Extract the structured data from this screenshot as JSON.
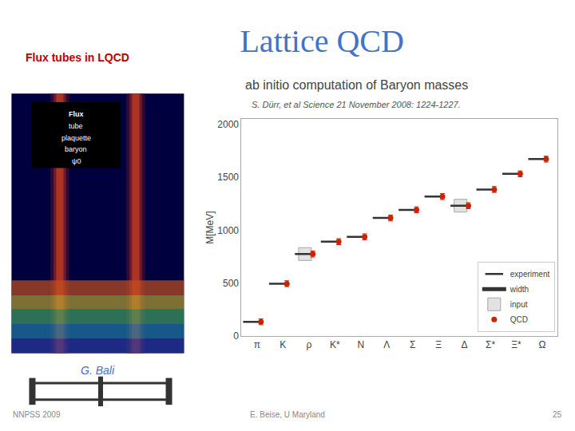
{
  "chart_data": {
    "type": "scatter",
    "title": "Lattice QCD",
    "title_color": "#4472c4",
    "subtitle": "ab initio computation of Baryon masses",
    "annotations": [
      {
        "text": "Flux tubes in LQCD",
        "color": "#c00000"
      },
      {
        "text": "S. Dürr, et al Science 21 November 2008: 1224-1227.",
        "color": "#555555"
      },
      {
        "text": "G. Bali",
        "color": "#4472c4"
      }
    ],
    "image_labels": [
      "Flux",
      "tube",
      "plaquette",
      "baryon",
      "ψ0"
    ],
    "footer": [
      {
        "text": "NNPSS 2009",
        "color": "#888888"
      },
      {
        "text": "E. Beise, U Maryland",
        "color": "#888888"
      },
      {
        "text": "25",
        "color": "#888888"
      }
    ],
    "y_label": "M[MeV]",
    "categories": [
      "π",
      "K",
      "ρ",
      "K*",
      "N",
      "Λ",
      "Σ",
      "Ξ",
      "Δ",
      "Σ*",
      "Ξ*",
      "Ω"
    ],
    "series": [
      {
        "name": "experiment",
        "color": "#333333",
        "marker": "line",
        "values": [
          135,
          495,
          775,
          892,
          938,
          1116,
          1193,
          1318,
          1232,
          1385,
          1533,
          1672
        ]
      },
      {
        "name": "width",
        "color": "#333333",
        "line_style": "solid",
        "values": [
          null,
          null,
          null,
          null,
          null,
          null,
          null,
          null,
          null,
          null,
          null,
          null
        ]
      },
      {
        "name": "input",
        "color": "#dddddd",
        "marker": "square",
        "values": [
          null,
          null,
          775,
          null,
          null,
          null,
          null,
          null,
          1232,
          null,
          null,
          null
        ]
      },
      {
        "name": "QCD",
        "color": "#cc2200",
        "marker": "circle",
        "values": [
          135,
          495,
          775,
          892,
          938,
          1116,
          1193,
          1318,
          1232,
          1385,
          1533,
          1672
        ],
        "errors": [
          28,
          28,
          28,
          28,
          28,
          28,
          28,
          28,
          28,
          28,
          28,
          28
        ]
      }
    ],
    "ylim": [
      0,
      2050
    ],
    "yticks": [
      0,
      500,
      1000,
      1500,
      2000
    ],
    "grid": false,
    "legend": "lower right"
  }
}
